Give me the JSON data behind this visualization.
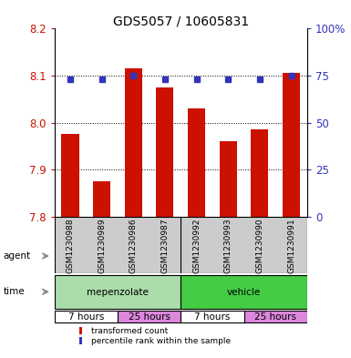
{
  "title": "GDS5057 / 10605831",
  "samples": [
    "GSM1230988",
    "GSM1230989",
    "GSM1230986",
    "GSM1230987",
    "GSM1230992",
    "GSM1230993",
    "GSM1230990",
    "GSM1230991"
  ],
  "bar_values": [
    7.975,
    7.875,
    8.115,
    8.075,
    8.03,
    7.96,
    7.985,
    8.105
  ],
  "percentile_values": [
    73,
    73,
    75,
    73,
    73,
    73,
    73,
    75
  ],
  "ylim_left": [
    7.8,
    8.2
  ],
  "ylim_right": [
    0,
    100
  ],
  "yticks_left": [
    7.8,
    7.9,
    8.0,
    8.1,
    8.2
  ],
  "yticks_right": [
    0,
    25,
    50,
    75,
    100
  ],
  "bar_color": "#cc1100",
  "dot_color": "#3333bb",
  "agent_groups": [
    {
      "label": "mepenzolate",
      "color": "#aaddaa",
      "span": [
        0,
        4
      ]
    },
    {
      "label": "vehicle",
      "color": "#44cc44",
      "span": [
        4,
        8
      ]
    }
  ],
  "time_groups": [
    {
      "label": "7 hours",
      "color": "#ffffff",
      "span": [
        0,
        2
      ]
    },
    {
      "label": "25 hours",
      "color": "#dd88dd",
      "span": [
        2,
        4
      ]
    },
    {
      "label": "7 hours",
      "color": "#ffffff",
      "span": [
        4,
        6
      ]
    },
    {
      "label": "25 hours",
      "color": "#dd88dd",
      "span": [
        6,
        8
      ]
    }
  ],
  "sample_bg_color": "#cccccc",
  "legend_bar_label": "transformed count",
  "legend_dot_label": "percentile rank within the sample",
  "agent_label": "agent",
  "time_label": "time",
  "background_color": "#ffffff",
  "tick_label_color_left": "#cc1100",
  "tick_label_color_right": "#3333bb",
  "arrow_color": "#888888"
}
